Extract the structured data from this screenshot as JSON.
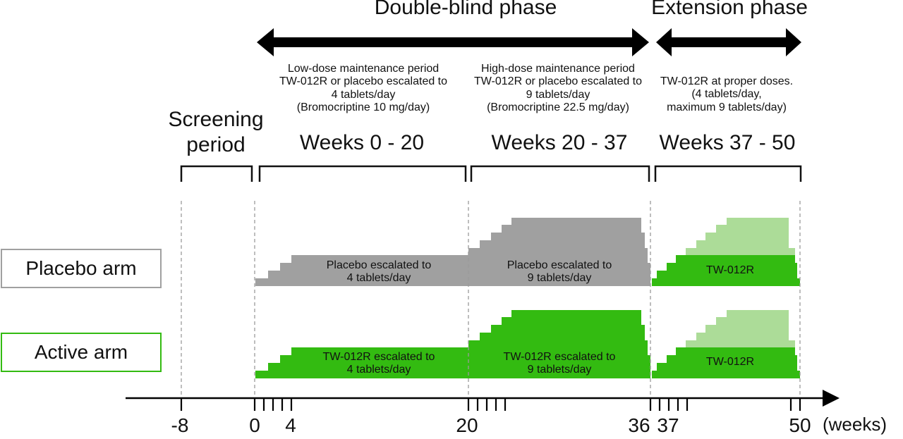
{
  "phases": {
    "double_blind": "Double-blind phase",
    "extension": "Extension phase"
  },
  "periods": {
    "low_dose": {
      "line1": "Low-dose maintenance period",
      "line2": "TW-012R or placebo escalated to",
      "line3": "4  tablets/day",
      "line4": "(Bromocriptine 10 mg/day)",
      "weeks": "Weeks 0 - 20"
    },
    "high_dose": {
      "line1": "High-dose maintenance period",
      "line2": "TW-012R or placebo escalated to",
      "line3": "9  tablets/day",
      "line4": "(Bromocriptine 22.5 mg/day)",
      "weeks": "Weeks 20 - 37"
    },
    "extension": {
      "line1": "TW-012R at proper doses.",
      "line2": "(4  tablets/day,",
      "line3": "maximum  9 tablets/day)",
      "weeks": "Weeks 37 - 50"
    },
    "screening": {
      "line1": "Screening",
      "line2": "period"
    }
  },
  "arms": {
    "placebo": {
      "label": "Placebo arm",
      "box_color": "#a0a0a0",
      "bar_color": "#a0a0a0",
      "low_line1": "Placebo escalated to",
      "low_line2": "4 tablets/day",
      "high_line1": "Placebo escalated to",
      "high_line2": "9 tablets/day",
      "ext_label": "TW-012R"
    },
    "active": {
      "label": "Active arm",
      "box_color": "#33bb11",
      "bar_color": "#33bb11",
      "low_line1": "TW-012R escalated to",
      "low_line2": "4 tablets/day",
      "high_line1": "TW-012R escalated to",
      "high_line2": "9 tablets/day",
      "ext_label": "TW-012R"
    }
  },
  "colors": {
    "grey": "#a0a0a0",
    "green": "#33bb11",
    "light_green": "#acdc98",
    "arrow": "#000000",
    "dashed": "#9a9a9a"
  },
  "axis": {
    "ticks": [
      "-8",
      "0",
      "4",
      "20",
      "36",
      "37",
      "50"
    ],
    "unit": "(weeks)"
  }
}
